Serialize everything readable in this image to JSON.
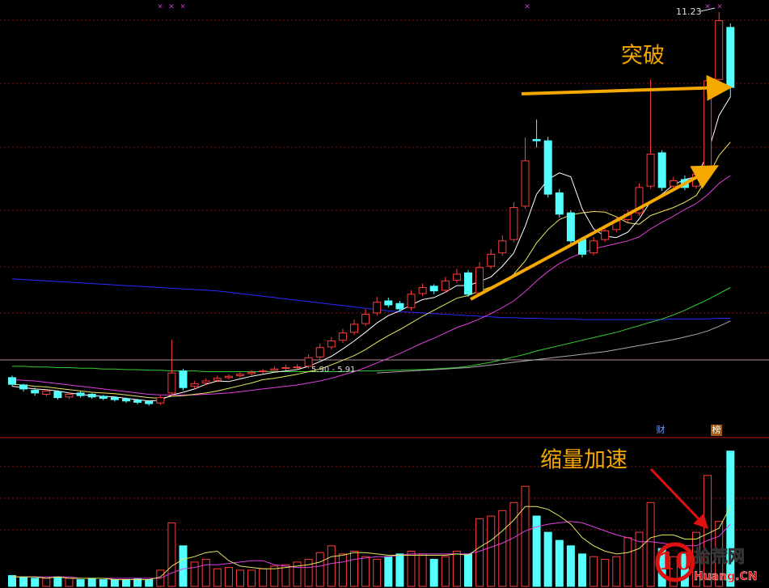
{
  "chart_data": [
    {
      "type": "candlestick",
      "up_color": "#ff3c3c",
      "down_color": "#54ffff",
      "ylim": [
        4.9,
        11.35
      ],
      "open": [
        5.75,
        5.64,
        5.56,
        5.5,
        5.54,
        5.46,
        5.52,
        5.5,
        5.47,
        5.45,
        5.43,
        5.41,
        5.39,
        5.37,
        5.52,
        5.85,
        5.62,
        5.67,
        5.71,
        5.75,
        5.78,
        5.81,
        5.84,
        5.86,
        5.89,
        5.9,
        5.92,
        6.06,
        6.21,
        6.31,
        6.43,
        6.56,
        6.72,
        6.9,
        6.86,
        6.8,
        7.01,
        7.12,
        7.06,
        7.21,
        7.32,
        7.02,
        7.42,
        7.62,
        7.82,
        8.32,
        9.32,
        9.3,
        8.52,
        8.22,
        7.82,
        7.62,
        7.82,
        7.97,
        8.12,
        8.22,
        8.62,
        9.12,
        8.62,
        8.72,
        8.62,
        8.82,
        10.22,
        11.0
      ],
      "high": [
        5.78,
        5.66,
        5.6,
        5.58,
        5.56,
        5.53,
        5.55,
        5.52,
        5.49,
        5.47,
        5.45,
        5.43,
        5.41,
        5.48,
        6.32,
        5.88,
        5.7,
        5.74,
        5.78,
        5.8,
        5.83,
        5.86,
        5.88,
        5.92,
        5.94,
        5.95,
        6.1,
        6.26,
        6.36,
        6.48,
        6.62,
        6.78,
        6.96,
        6.95,
        6.9,
        7.06,
        7.16,
        7.15,
        7.26,
        7.38,
        7.36,
        7.48,
        7.68,
        7.88,
        8.38,
        9.35,
        9.62,
        9.36,
        8.58,
        8.26,
        7.86,
        7.86,
        8.0,
        8.16,
        8.26,
        8.66,
        10.22,
        9.16,
        8.76,
        8.78,
        8.86,
        10.24,
        11.23,
        11.06
      ],
      "low": [
        5.62,
        5.54,
        5.48,
        5.47,
        5.42,
        5.43,
        5.45,
        5.43,
        5.41,
        5.39,
        5.37,
        5.35,
        5.33,
        5.34,
        5.48,
        5.56,
        5.58,
        5.64,
        5.68,
        5.72,
        5.75,
        5.78,
        5.81,
        5.83,
        5.86,
        5.87,
        5.89,
        6.02,
        6.17,
        6.27,
        6.39,
        6.52,
        6.68,
        6.8,
        6.74,
        6.76,
        6.97,
        7.0,
        7.02,
        7.17,
        6.96,
        6.98,
        7.38,
        7.58,
        7.78,
        8.28,
        9.2,
        8.45,
        8.15,
        7.75,
        7.55,
        7.58,
        7.78,
        7.93,
        8.08,
        8.18,
        8.58,
        8.55,
        8.58,
        8.56,
        8.58,
        8.78,
        10.18,
        9.95
      ],
      "close": [
        5.65,
        5.58,
        5.52,
        5.55,
        5.45,
        5.5,
        5.48,
        5.46,
        5.44,
        5.42,
        5.4,
        5.38,
        5.36,
        5.45,
        5.82,
        5.6,
        5.66,
        5.7,
        5.74,
        5.77,
        5.8,
        5.83,
        5.85,
        5.88,
        5.9,
        5.91,
        6.05,
        6.2,
        6.3,
        6.42,
        6.55,
        6.7,
        6.88,
        6.84,
        6.78,
        7.0,
        7.1,
        7.05,
        7.2,
        7.3,
        7.0,
        7.4,
        7.6,
        7.8,
        8.3,
        9.0,
        9.3,
        8.5,
        8.2,
        7.8,
        7.6,
        7.8,
        7.95,
        8.1,
        8.2,
        8.6,
        9.1,
        8.6,
        8.7,
        8.6,
        8.8,
        10.2,
        11.1,
        10.1
      ],
      "lines": [
        {
          "color": "#2a2aff",
          "values": [
            7.23,
            7.22,
            7.21,
            7.2,
            7.19,
            7.18,
            7.17,
            7.16,
            7.15,
            7.14,
            7.13,
            7.12,
            7.11,
            7.1,
            7.09,
            7.08,
            7.07,
            7.06,
            7.05,
            7.03,
            7.01,
            6.99,
            6.97,
            6.95,
            6.93,
            6.91,
            6.89,
            6.87,
            6.85,
            6.83,
            6.81,
            6.79,
            6.77,
            6.75,
            6.74,
            6.73,
            6.72,
            6.71,
            6.7,
            6.69,
            6.68,
            6.67,
            6.66,
            6.65,
            6.65,
            6.64,
            6.64,
            6.63,
            6.63,
            6.63,
            6.62,
            6.62,
            6.62,
            6.62,
            6.62,
            6.62,
            6.62,
            6.62,
            6.63,
            6.63,
            6.63,
            6.63,
            6.64,
            6.64
          ]
        },
        {
          "color": "#33cc33",
          "values": [
            5.92,
            5.92,
            5.91,
            5.91,
            5.9,
            5.9,
            5.89,
            5.89,
            5.88,
            5.88,
            5.87,
            5.87,
            5.86,
            5.86,
            5.85,
            5.85,
            5.85,
            5.84,
            5.84,
            5.84,
            5.84,
            5.84,
            5.84,
            5.84,
            5.84,
            5.84,
            5.84,
            5.84,
            5.84,
            5.84,
            5.85,
            5.85,
            5.85,
            5.86,
            5.86,
            5.87,
            5.87,
            5.88,
            5.89,
            5.9,
            5.92,
            5.95,
            5.98,
            6.02,
            6.06,
            6.1,
            6.15,
            6.19,
            6.23,
            6.27,
            6.31,
            6.35,
            6.39,
            6.43,
            6.48,
            6.53,
            6.58,
            6.63,
            6.69,
            6.76,
            6.84,
            6.92,
            7.01,
            7.1
          ]
        },
        {
          "color": "#aaaaaa",
          "values": [
            null,
            null,
            null,
            null,
            null,
            null,
            null,
            null,
            null,
            null,
            null,
            null,
            null,
            null,
            null,
            null,
            null,
            null,
            null,
            null,
            null,
            null,
            null,
            null,
            null,
            null,
            null,
            null,
            null,
            null,
            null,
            null,
            5.82,
            5.83,
            5.84,
            5.85,
            5.86,
            5.87,
            5.88,
            5.89,
            5.9,
            5.92,
            5.94,
            5.96,
            5.98,
            6.0,
            6.02,
            6.04,
            6.06,
            6.08,
            6.1,
            6.12,
            6.14,
            6.17,
            6.2,
            6.23,
            6.26,
            6.29,
            6.32,
            6.36,
            6.4,
            6.45,
            6.52,
            6.6
          ]
        },
        {
          "color": "#e040e0",
          "values": [
            5.72,
            5.71,
            5.7,
            5.68,
            5.66,
            5.64,
            5.62,
            5.6,
            5.58,
            5.56,
            5.54,
            5.52,
            5.5,
            5.49,
            5.49,
            5.49,
            5.49,
            5.5,
            5.51,
            5.52,
            5.54,
            5.56,
            5.58,
            5.6,
            5.62,
            5.64,
            5.67,
            5.7,
            5.74,
            5.79,
            5.84,
            5.9,
            5.97,
            6.04,
            6.11,
            6.19,
            6.27,
            6.34,
            6.42,
            6.5,
            6.56,
            6.63,
            6.71,
            6.8,
            6.9,
            7.04,
            7.2,
            7.34,
            7.46,
            7.55,
            7.62,
            7.68,
            7.72,
            7.76,
            7.8,
            7.86,
            7.98,
            8.08,
            8.17,
            8.27,
            8.36,
            8.49,
            8.66,
            8.78
          ]
        },
        {
          "color": "#e8e860",
          "values": [
            5.65,
            5.64,
            5.62,
            5.61,
            5.59,
            5.57,
            5.55,
            5.53,
            5.52,
            5.51,
            5.49,
            5.47,
            5.45,
            5.44,
            5.47,
            5.48,
            5.5,
            5.52,
            5.55,
            5.59,
            5.63,
            5.67,
            5.72,
            5.74,
            5.77,
            5.8,
            5.84,
            5.88,
            5.94,
            6.01,
            6.08,
            6.17,
            6.28,
            6.38,
            6.47,
            6.57,
            6.67,
            6.76,
            6.85,
            6.94,
            6.98,
            7.05,
            7.11,
            7.18,
            7.3,
            7.5,
            7.77,
            7.97,
            8.12,
            8.19,
            8.22,
            8.24,
            8.23,
            8.16,
            8.07,
            8.05,
            8.18,
            8.24,
            8.3,
            8.38,
            8.48,
            8.75,
            9.08,
            9.28
          ]
        },
        {
          "color": "#ffffff",
          "values": [
            5.62,
            5.6,
            5.58,
            5.57,
            5.55,
            5.52,
            5.5,
            5.48,
            5.47,
            5.46,
            5.44,
            5.42,
            5.4,
            5.41,
            5.49,
            5.53,
            5.58,
            5.65,
            5.7,
            5.69,
            5.73,
            5.77,
            5.8,
            5.83,
            5.85,
            5.87,
            5.92,
            5.99,
            6.07,
            6.18,
            6.3,
            6.43,
            6.57,
            6.68,
            6.75,
            6.84,
            6.92,
            6.95,
            7.03,
            7.13,
            7.13,
            7.19,
            7.26,
            7.42,
            7.62,
            8.02,
            8.5,
            8.72,
            8.82,
            8.76,
            8.28,
            7.98,
            7.87,
            7.85,
            7.93,
            8.13,
            8.39,
            8.5,
            8.64,
            8.72,
            8.76,
            9.1,
            9.68,
            9.96
          ]
        }
      ],
      "annotations": {
        "breakthrough": "突破",
        "high_label": "11.23",
        "range_label": "5.90 - 5.91",
        "tag_finance": "财",
        "tag_list": "榜"
      }
    },
    {
      "type": "bar",
      "up_color": "#ff3c3c",
      "down_color": "#54ffff",
      "ylim": [
        0,
        110
      ],
      "values": [
        8,
        7,
        6,
        6,
        7,
        6,
        5,
        6,
        5,
        5,
        5,
        6,
        5,
        12,
        47,
        30,
        18,
        20,
        13,
        14,
        12,
        12,
        13,
        15,
        16,
        18,
        20,
        25,
        30,
        24,
        26,
        22,
        20,
        22,
        24,
        26,
        24,
        20,
        22,
        26,
        24,
        50,
        52,
        56,
        62,
        74,
        52,
        40,
        34,
        30,
        24,
        22,
        20,
        22,
        36,
        40,
        62,
        28,
        22,
        24,
        40,
        82,
        48,
        100
      ],
      "lines": [
        {
          "color": "#e040e0",
          "values": [
            7,
            7,
            7,
            7,
            7,
            7,
            6,
            6,
            6,
            6,
            6,
            6,
            6,
            6,
            10,
            13,
            14,
            16,
            16,
            17,
            18,
            19,
            19,
            16,
            15,
            14,
            14,
            15,
            17,
            18,
            20,
            21,
            22,
            22,
            23,
            24,
            24,
            24,
            24,
            24,
            24,
            26,
            29,
            32,
            36,
            41,
            44,
            46,
            47,
            48,
            47,
            44,
            41,
            38,
            36,
            33,
            33,
            32,
            31,
            30,
            30,
            34,
            37,
            46
          ]
        },
        {
          "color": "#e8e860",
          "values": [
            7,
            7,
            7,
            6,
            7,
            6,
            6,
            6,
            6,
            5,
            5,
            5,
            5,
            7,
            15,
            20,
            22,
            25,
            26,
            19,
            15,
            14,
            13,
            13,
            14,
            15,
            16,
            18,
            22,
            23,
            25,
            25,
            24,
            23,
            23,
            23,
            23,
            23,
            23,
            24,
            23,
            29,
            34,
            41,
            49,
            59,
            59,
            57,
            52,
            46,
            36,
            30,
            26,
            24,
            25,
            28,
            36,
            38,
            38,
            35,
            35,
            39,
            43,
            59
          ]
        }
      ],
      "annotations": {
        "volume_note": "缩量加速"
      }
    }
  ],
  "watermark": {
    "logo": "10",
    "site": "拾荒网",
    "domain": "Huang.CN"
  }
}
